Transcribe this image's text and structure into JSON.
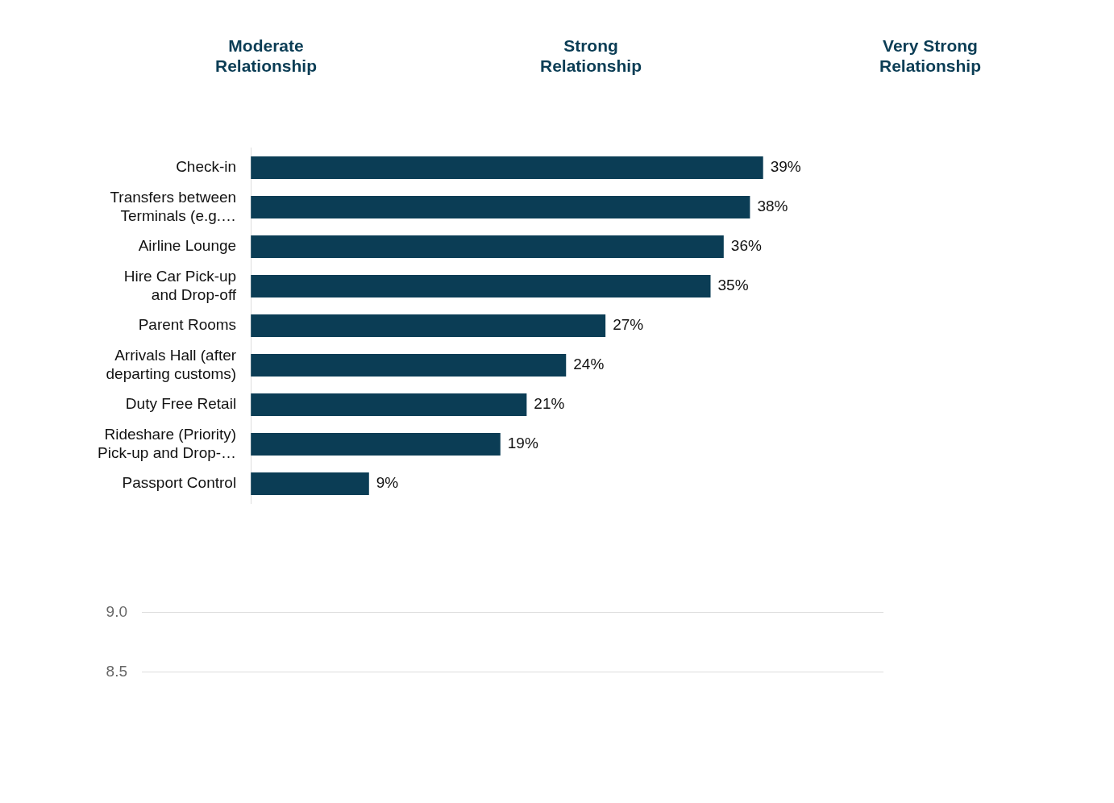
{
  "chart_data": [
    {
      "type": "bar",
      "orientation": "horizontal",
      "annotations": [
        "Moderate\nRelationship",
        "Strong\nRelationship",
        "Very Strong\nRelationship"
      ],
      "categories": [
        "Check-in",
        "Transfers between\nTerminals (e.g.…",
        "Airline Lounge",
        "Hire Car Pick-up\nand Drop-off",
        "Parent Rooms",
        "Arrivals Hall (after\ndeparting customs)",
        "Duty Free Retail",
        "Rideshare (Priority)\nPick-up and Drop-…",
        "Passport Control"
      ],
      "values": [
        39,
        38,
        36,
        35,
        27,
        24,
        21,
        19,
        9
      ],
      "color": "#0b3d55",
      "data_labels": true,
      "value_labels": [
        "39%",
        "38%",
        "36%",
        "35%",
        "27%",
        "24%",
        "21%",
        "19%",
        "9%"
      ],
      "tick_labels": "y"
    },
    {
      "type": "other",
      "annotations": [
        "9.0",
        "8.5"
      ]
    }
  ]
}
